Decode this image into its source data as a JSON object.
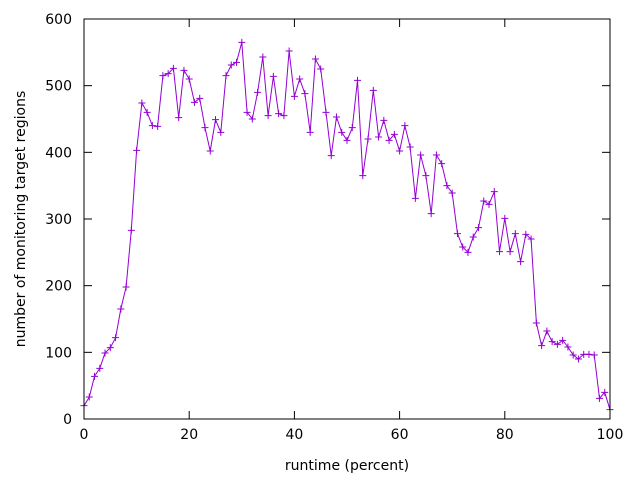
{
  "chart_data": {
    "type": "line",
    "xlabel": "runtime (percent)",
    "ylabel": "number of monitoring target regions",
    "xlim": [
      0,
      100
    ],
    "ylim": [
      0,
      600
    ],
    "x_ticks": [
      "0",
      "20",
      "40",
      "60",
      "80",
      "100"
    ],
    "y_ticks": [
      "0",
      "100",
      "200",
      "300",
      "400",
      "500",
      "600"
    ],
    "grid": false,
    "legend": "none",
    "colors": {
      "series": "#9400d3",
      "axes": "#000000"
    },
    "series": [
      {
        "x": [
          0,
          1,
          2,
          3,
          4,
          5,
          6,
          7,
          8,
          9,
          10,
          11,
          12,
          13,
          14,
          15,
          16,
          17,
          18,
          19,
          20,
          21,
          22,
          23,
          24,
          25,
          26,
          27,
          28,
          29,
          30,
          31,
          32,
          33,
          34,
          35,
          36,
          37,
          38,
          39,
          40,
          41,
          42,
          43,
          44,
          45,
          46,
          47,
          48,
          49,
          50,
          51,
          52,
          53,
          54,
          55,
          56,
          57,
          58,
          59,
          60,
          61,
          62,
          63,
          64,
          65,
          66,
          67,
          68,
          69,
          70,
          71,
          72,
          73,
          74,
          75,
          76,
          77,
          78,
          79,
          80,
          81,
          82,
          83,
          84,
          85,
          86,
          87,
          88,
          89,
          90,
          91,
          92,
          93,
          94,
          95,
          96,
          97,
          98,
          99,
          100
        ],
        "values": [
          20,
          33,
          64,
          76,
          99,
          107,
          122,
          165,
          198,
          283,
          403,
          474,
          460,
          440,
          439,
          515,
          518,
          526,
          452,
          523,
          510,
          475,
          481,
          437,
          402,
          449,
          430,
          515,
          531,
          535,
          565,
          460,
          450,
          490,
          543,
          455,
          514,
          458,
          455,
          552,
          484,
          510,
          488,
          430,
          540,
          525,
          460,
          395,
          453,
          430,
          418,
          437,
          508,
          365,
          420,
          493,
          423,
          448,
          418,
          427,
          402,
          440,
          408,
          331,
          396,
          365,
          308,
          396,
          383,
          350,
          339,
          278,
          258,
          250,
          273,
          287,
          327,
          322,
          341,
          251,
          301,
          251,
          278,
          236,
          277,
          270,
          144,
          110,
          132,
          116,
          112,
          118,
          108,
          96,
          90,
          97,
          97,
          96,
          31,
          40,
          14
        ]
      }
    ]
  }
}
